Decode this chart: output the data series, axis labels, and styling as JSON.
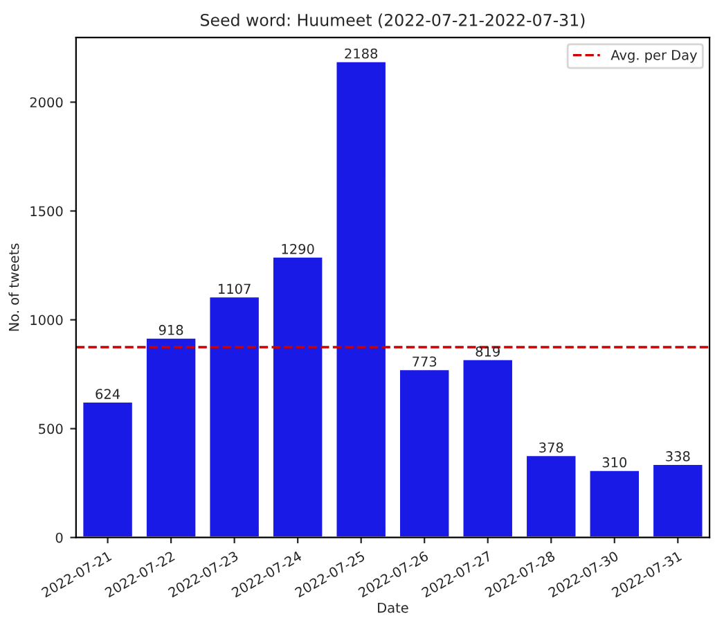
{
  "chart_data": {
    "type": "bar",
    "title": "Seed word: Huumeet (2022-07-21-2022-07-31)",
    "xlabel": "Date",
    "ylabel": "No. of tweets",
    "categories": [
      "2022-07-21",
      "2022-07-22",
      "2022-07-23",
      "2022-07-24",
      "2022-07-25",
      "2022-07-26",
      "2022-07-27",
      "2022-07-28",
      "2022-07-30",
      "2022-07-31"
    ],
    "values": [
      624,
      918,
      1107,
      1290,
      2188,
      773,
      819,
      378,
      310,
      338
    ],
    "color": "#1a1ae6",
    "data_labels": true,
    "ylim": [
      0,
      2297
    ],
    "yticks": [
      0,
      500,
      1000,
      1500,
      2000
    ],
    "ref_lines": [
      {
        "axis": "y",
        "value": 874.5,
        "label": "Avg. per Day",
        "color": "#cc0000",
        "line_style": "dashed"
      }
    ],
    "legend": "top right",
    "grid": false
  }
}
